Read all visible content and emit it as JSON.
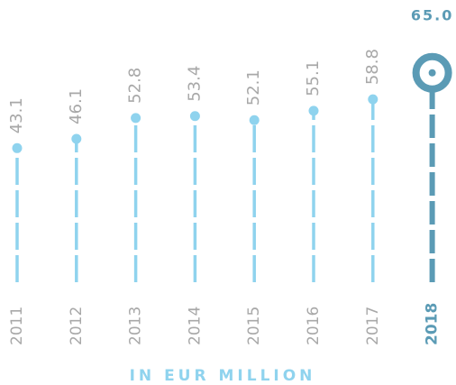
{
  "chart_data": {
    "type": "lollipop",
    "categories": [
      "2011",
      "2012",
      "2013",
      "2014",
      "2015",
      "2016",
      "2017",
      "2018"
    ],
    "values": [
      43.1,
      46.1,
      52.8,
      53.4,
      52.1,
      55.1,
      58.8,
      65.0
    ],
    "value_labels": [
      "43.1",
      "46.1",
      "52.8",
      "53.4",
      "52.1",
      "55.1",
      "58.8",
      "65.0"
    ],
    "color": "#8fd3ee",
    "colors": [
      "#8fd3ee",
      "#8fd3ee",
      "#8fd3ee",
      "#8fd3ee",
      "#8fd3ee",
      "#8fd3ee",
      "#8fd3ee",
      "#5b9bb5"
    ],
    "axis_label": "IN EUR MILLION"
  }
}
